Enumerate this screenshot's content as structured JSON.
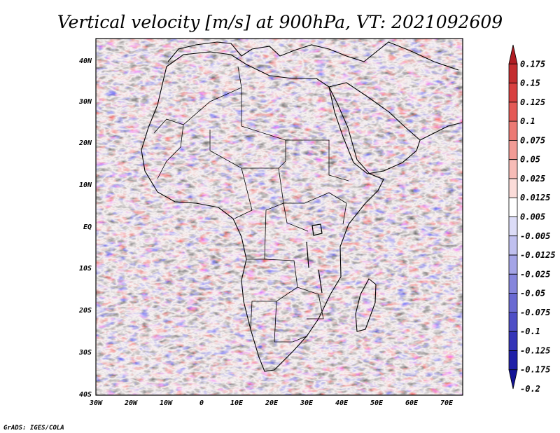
{
  "title": "Vertical velocity [m/s] at 900hPa, VT: 2021092609",
  "credit": "GrADS: IGES/COLA",
  "lat_labels": [
    "40N",
    "30N",
    "20N",
    "10N",
    "EQ",
    "10S",
    "20S",
    "30S",
    "40S"
  ],
  "lon_labels": [
    "30W",
    "20W",
    "10W",
    "0",
    "10E",
    "20E",
    "30E",
    "40E",
    "50E",
    "60E",
    "70E"
  ],
  "colorbar": {
    "labels": [
      "0.175",
      "0.15",
      "0.125",
      "0.1",
      "0.075",
      "0.05",
      "0.025",
      "0.0125",
      "0.005",
      "-0.005",
      "-0.0125",
      "-0.025",
      "-0.05",
      "-0.075",
      "-0.1",
      "-0.125",
      "-0.175",
      "-0.2"
    ],
    "colors": [
      "#b01c22",
      "#c42d2f",
      "#d84040",
      "#e45a56",
      "#ec7a74",
      "#f29b95",
      "#f7bcb7",
      "#fbdcd9",
      "#ffffff",
      "#dcdcf7",
      "#c0c0ef",
      "#a4a4e6",
      "#8686dc",
      "#6a6ad2",
      "#4e4ec6",
      "#3434b8",
      "#2020a8",
      "#141496"
    ]
  },
  "map_colors": {
    "red": "#e0484a",
    "blue": "#4b4bd0",
    "border": "#000000"
  }
}
